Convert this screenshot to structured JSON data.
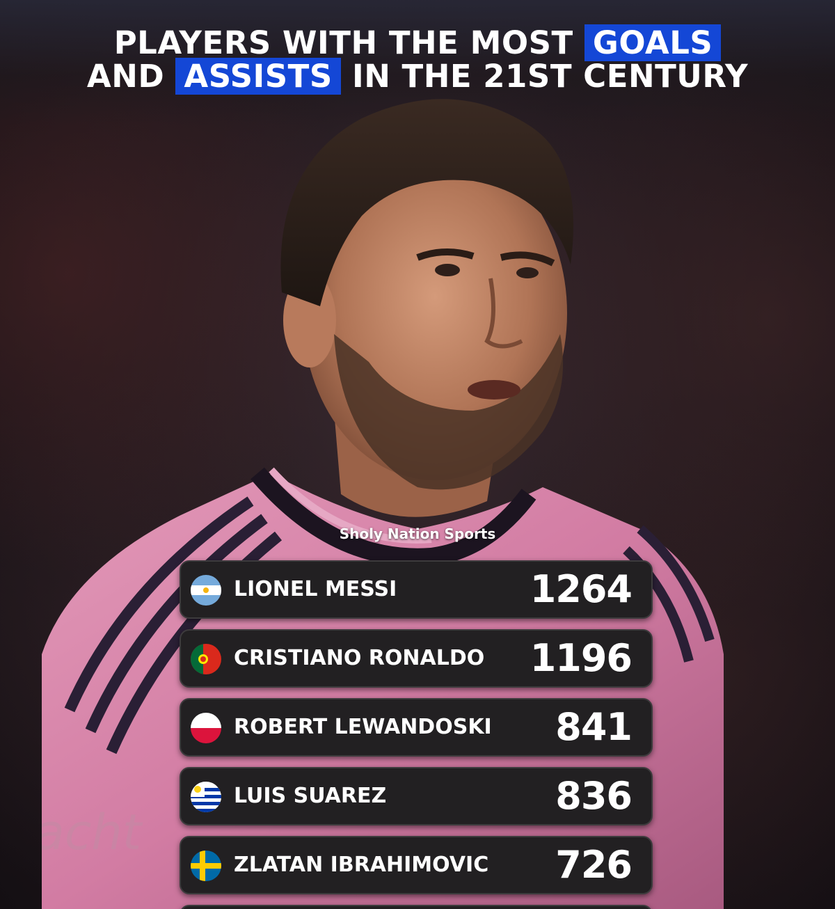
{
  "title": {
    "line1_prefix": "PLAYERS WITH THE MOST",
    "line1_highlight": "GOALS",
    "line2_prefix": "AND",
    "line2_highlight": "ASSISTS",
    "line2_suffix": "IN THE 21ST CENTURY"
  },
  "watermark": "Sholy Nation Sports",
  "colors": {
    "highlight": "#1447d6",
    "row_bg": "#222022",
    "jersey_pink": "#d77fa6"
  },
  "players": [
    {
      "name": "LIONEL MESSI",
      "value": "1264",
      "flag": "argentina-flag-icon"
    },
    {
      "name": "CRISTIANO RONALDO",
      "value": "1196",
      "flag": "portugal-flag-icon"
    },
    {
      "name": "ROBERT LEWANDOSKI",
      "value": "841",
      "flag": "poland-flag-icon"
    },
    {
      "name": "LUIS SUAREZ",
      "value": "836",
      "flag": "uruguay-flag-icon"
    },
    {
      "name": "ZLATAN IBRAHIMOVIC",
      "value": "726",
      "flag": "sweden-flag-icon"
    }
  ]
}
